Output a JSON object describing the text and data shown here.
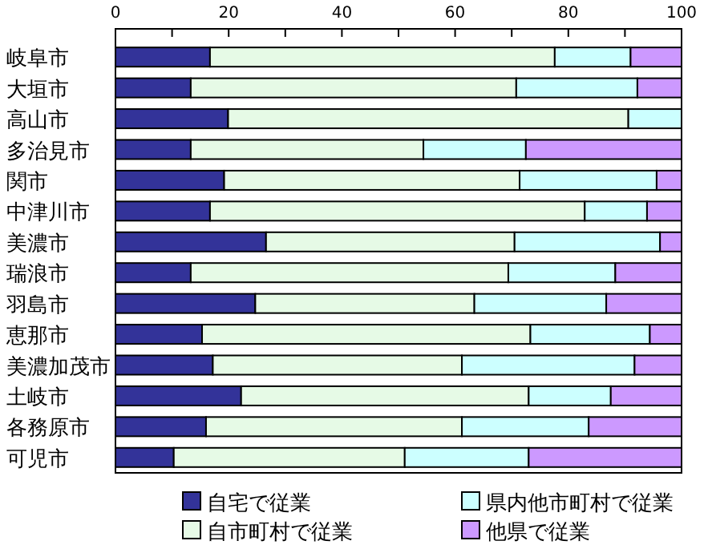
{
  "chart_data": {
    "type": "bar",
    "orientation": "horizontal",
    "stacked": true,
    "categories": [
      "岐阜市",
      "大垣市",
      "高山市",
      "多治見市",
      "関市",
      "中津川市",
      "美濃市",
      "瑞浪市",
      "羽島市",
      "恵那市",
      "美濃加茂市",
      "土岐市",
      "各務原市",
      "可児市"
    ],
    "series": [
      {
        "name": "自宅で従業",
        "color": "#333399",
        "values": [
          16.7,
          13.3,
          19.9,
          13.3,
          19.2,
          16.7,
          26.6,
          13.3,
          24.7,
          15.3,
          17.2,
          22.2,
          16.0,
          10.3
        ]
      },
      {
        "name": "自市町村で従業",
        "color": "#e6fae6",
        "values": [
          60.9,
          57.5,
          70.7,
          41.1,
          52.2,
          66.2,
          43.9,
          56.1,
          38.7,
          58.0,
          44.0,
          50.8,
          45.2,
          40.8
        ]
      },
      {
        "name": "県内他市町村で従業",
        "color": "#ccffff",
        "values": [
          13.4,
          21.4,
          9.4,
          18.1,
          24.2,
          11.0,
          25.7,
          18.9,
          23.3,
          21.1,
          30.5,
          14.5,
          22.4,
          21.9
        ]
      },
      {
        "name": "他県で従業",
        "color": "#cc99ff",
        "values": [
          9.0,
          7.8,
          0,
          27.5,
          4.4,
          6.1,
          3.8,
          11.7,
          13.3,
          5.6,
          8.3,
          12.5,
          16.4,
          27.0
        ]
      }
    ],
    "xlim": [
      0,
      100
    ],
    "xticks": [
      0,
      {
        "value": 10,
        "label": null
      },
      20,
      {
        "value": 30,
        "label": null
      },
      40,
      {
        "value": 50,
        "label": null
      },
      60,
      {
        "value": 70,
        "label": null
      },
      80,
      {
        "value": 90,
        "label": null
      },
      100
    ],
    "legend": "bottom",
    "grid": false
  }
}
